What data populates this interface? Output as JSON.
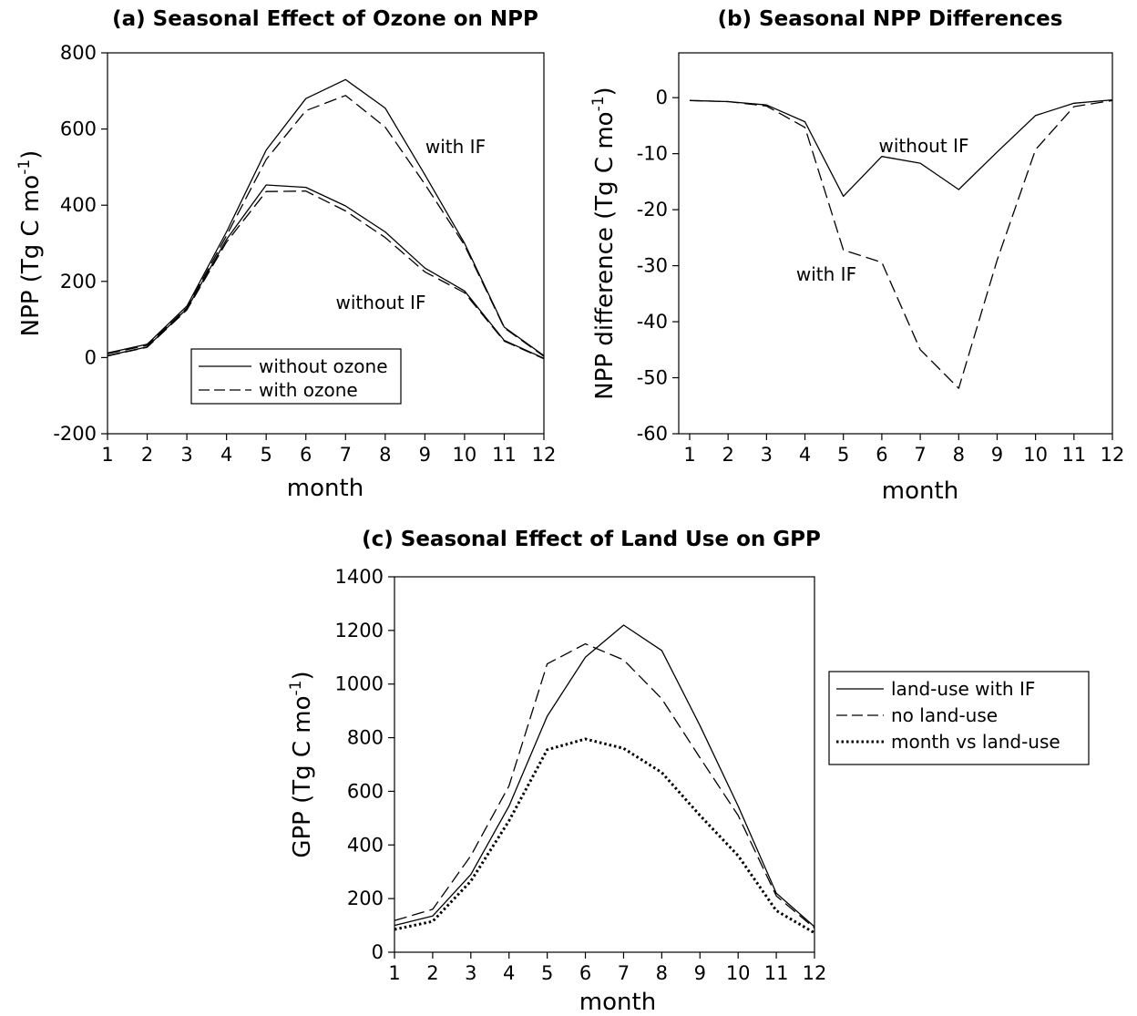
{
  "chart_data": [
    {
      "type": "line",
      "title": "(a) Seasonal Effect of Ozone on NPP",
      "xlabel": "month",
      "ylabel": "NPP (Tg C mo",
      "ylabel_sup": "-1",
      "ylabel_tail": ")",
      "x": [
        1,
        2,
        3,
        4,
        5,
        6,
        7,
        8,
        9,
        10,
        11,
        12
      ],
      "ylim": [
        -200,
        800
      ],
      "yticks": [
        -200,
        0,
        200,
        400,
        600,
        800
      ],
      "series": [
        {
          "group": "with IF",
          "style": "solid",
          "values": [
            12,
            35,
            135,
            330,
            545,
            680,
            730,
            655,
            480,
            300,
            80,
            5
          ]
        },
        {
          "group": "with IF",
          "style": "dashed",
          "values": [
            10,
            32,
            130,
            320,
            520,
            648,
            688,
            605,
            455,
            295,
            78,
            3
          ]
        },
        {
          "group": "without IF",
          "style": "solid",
          "values": [
            5,
            28,
            128,
            310,
            453,
            447,
            398,
            330,
            235,
            175,
            45,
            -2
          ]
        },
        {
          "group": "without IF",
          "style": "dashed",
          "values": [
            4,
            27,
            125,
            303,
            436,
            437,
            385,
            315,
            225,
            170,
            43,
            -3
          ]
        }
      ],
      "annotations": [
        "with IF",
        "without IF"
      ],
      "legend": {
        "position": "bottom-center",
        "entries": [
          {
            "label": "without ozone",
            "style": "solid"
          },
          {
            "label": "with ozone",
            "style": "dashed"
          }
        ]
      },
      "grid": false
    },
    {
      "type": "line",
      "title": "(b) Seasonal NPP Differences",
      "xlabel": "month",
      "ylabel": "NPP difference (Tg C mo",
      "ylabel_sup": "-1",
      "ylabel_tail": ")",
      "x": [
        1,
        2,
        3,
        4,
        5,
        6,
        7,
        8,
        9,
        10,
        11,
        12
      ],
      "ylim": [
        -60,
        8
      ],
      "yticks": [
        -60,
        -50,
        -40,
        -30,
        -20,
        -10,
        0
      ],
      "series": [
        {
          "name": "without IF",
          "style": "solid",
          "values": [
            -0.5,
            -0.7,
            -1.3,
            -4.3,
            -17.6,
            -10.5,
            -11.7,
            -16.4,
            -9.7,
            -3.2,
            -1.0,
            -0.4
          ]
        },
        {
          "name": "with IF",
          "style": "dashed",
          "values": [
            -0.5,
            -0.7,
            -1.5,
            -5.3,
            -27.2,
            -29.4,
            -45.0,
            -51.9,
            -29.0,
            -9.3,
            -1.6,
            -0.5
          ]
        }
      ],
      "grid": false
    },
    {
      "type": "line",
      "title": "(c) Seasonal Effect of Land Use on GPP",
      "xlabel": "month",
      "ylabel": "GPP (Tg C mo",
      "ylabel_sup": "-1",
      "ylabel_tail": ")",
      "x": [
        1,
        2,
        3,
        4,
        5,
        6,
        7,
        8,
        9,
        10,
        11,
        12
      ],
      "ylim": [
        0,
        1400
      ],
      "yticks": [
        0,
        200,
        400,
        600,
        800,
        1000,
        1200,
        1400
      ],
      "series": [
        {
          "name": "land-use with IF",
          "style": "solid",
          "values": [
            100,
            135,
            290,
            545,
            880,
            1100,
            1220,
            1125,
            845,
            545,
            220,
            95
          ]
        },
        {
          "name": "no land-use",
          "style": "dashed",
          "values": [
            118,
            160,
            360,
            620,
            1075,
            1150,
            1090,
            945,
            725,
            510,
            210,
            90
          ]
        },
        {
          "name": "month vs land-use",
          "style": "dotted",
          "values": [
            85,
            115,
            265,
            490,
            755,
            795,
            760,
            670,
            510,
            360,
            155,
            72
          ]
        }
      ],
      "legend": {
        "position": "right",
        "entries": [
          {
            "label": "land-use with IF",
            "style": "solid"
          },
          {
            "label": "no land-use",
            "style": "dashed"
          },
          {
            "label": "month vs land-use",
            "style": "dotted"
          }
        ]
      },
      "grid": false
    }
  ]
}
